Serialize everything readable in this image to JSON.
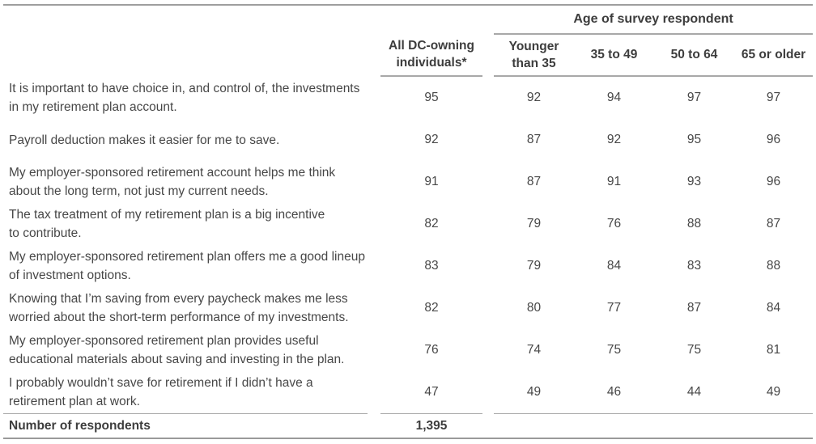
{
  "table": {
    "age_group_header": "Age of survey respondent",
    "columns": [
      "All DC-owning\nindividuals*",
      "Younger\nthan 35",
      "35 to 49",
      "50 to 64",
      "65 or older"
    ],
    "rows": [
      {
        "statement": "It is important to have choice in, and control of, the investments\nin my retirement plan account.",
        "values": [
          "95",
          "92",
          "94",
          "97",
          "97"
        ]
      },
      {
        "statement": "Payroll deduction makes it easier for me to save.",
        "values": [
          "92",
          "87",
          "92",
          "95",
          "96"
        ]
      },
      {
        "statement": "My employer-sponsored retirement account helps me think\nabout the long term, not just my current needs.",
        "values": [
          "91",
          "87",
          "91",
          "93",
          "96"
        ]
      },
      {
        "statement": "The tax treatment of my retirement plan is a big incentive\nto contribute.",
        "values": [
          "82",
          "79",
          "76",
          "88",
          "87"
        ]
      },
      {
        "statement": "My employer-sponsored retirement plan offers me a good lineup\nof investment options.",
        "values": [
          "83",
          "79",
          "84",
          "83",
          "88"
        ]
      },
      {
        "statement": "Knowing that I’m saving from every paycheck makes me less\nworried about the short-term performance of my investments.",
        "values": [
          "82",
          "80",
          "77",
          "87",
          "84"
        ]
      },
      {
        "statement": "My employer-sponsored retirement plan provides useful\neducational materials about saving and investing in the plan.",
        "values": [
          "76",
          "74",
          "75",
          "75",
          "81"
        ]
      },
      {
        "statement": "I probably wouldn’t save for retirement if I didn’t have a\nretirement plan at work.",
        "values": [
          "47",
          "49",
          "46",
          "44",
          "49"
        ]
      }
    ],
    "footer": {
      "label": "Number of respondents",
      "value": "1,395"
    }
  }
}
